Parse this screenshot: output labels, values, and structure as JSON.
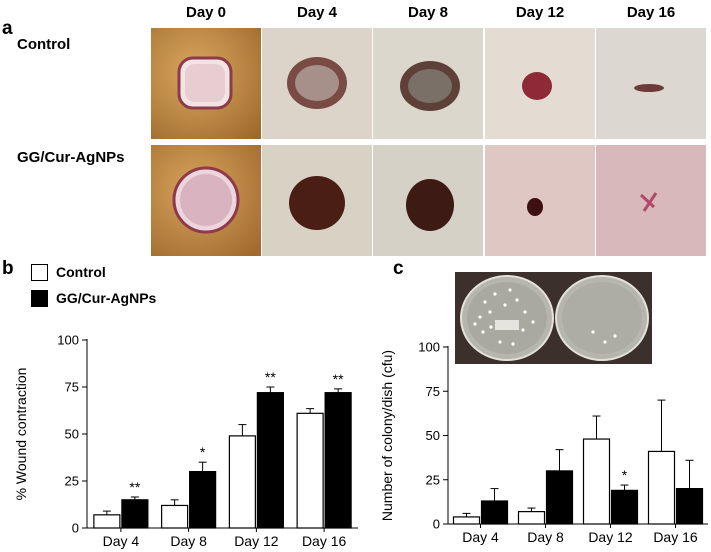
{
  "panel_a": {
    "letter": "a",
    "days": [
      "Day 0",
      "Day 4",
      "Day 8",
      "Day 12",
      "Day 16"
    ],
    "rows": [
      "Control",
      "GG/Cur-AgNPs"
    ]
  },
  "panel_b": {
    "letter": "b"
  },
  "panel_c": {
    "letter": "c"
  },
  "legend": [
    {
      "label": "Control",
      "fill": "#ffffff"
    },
    {
      "label": "GG/Cur-AgNPs",
      "fill": "#000000"
    }
  ],
  "chart_data": [
    {
      "type": "bar",
      "title": "",
      "xlabel": "",
      "ylabel": "% Wound contraction",
      "ylim": [
        0,
        100
      ],
      "yticks": [
        0,
        25,
        50,
        75,
        100
      ],
      "categories": [
        "Day 4",
        "Day 8",
        "Day 12",
        "Day 16"
      ],
      "series": [
        {
          "name": "Control",
          "color": "#ffffff",
          "values": [
            7,
            12,
            49,
            61
          ],
          "errors": [
            2,
            3,
            6,
            2.5
          ]
        },
        {
          "name": "GG/Cur-AgNPs",
          "color": "#000000",
          "values": [
            15,
            30,
            72,
            72
          ],
          "errors": [
            1.5,
            5,
            3,
            2
          ]
        }
      ],
      "annotations": [
        "**",
        "*",
        "**",
        "**"
      ],
      "grid": false
    },
    {
      "type": "bar",
      "title": "",
      "xlabel": "",
      "ylabel": "Number of colony/dish (cfu)",
      "ylim": [
        0,
        100
      ],
      "yticks": [
        0,
        25,
        50,
        75,
        100
      ],
      "categories": [
        "Day 4",
        "Day 8",
        "Day 12",
        "Day 16"
      ],
      "series": [
        {
          "name": "Control",
          "color": "#ffffff",
          "values": [
            4,
            7,
            48,
            41
          ],
          "errors": [
            2,
            2,
            13,
            29
          ]
        },
        {
          "name": "GG/Cur-AgNPs",
          "color": "#000000",
          "values": [
            13,
            30,
            19,
            20
          ],
          "errors": [
            7,
            12,
            3,
            16
          ]
        }
      ],
      "annotations": [
        "",
        "",
        "*",
        ""
      ],
      "grid": false
    }
  ]
}
